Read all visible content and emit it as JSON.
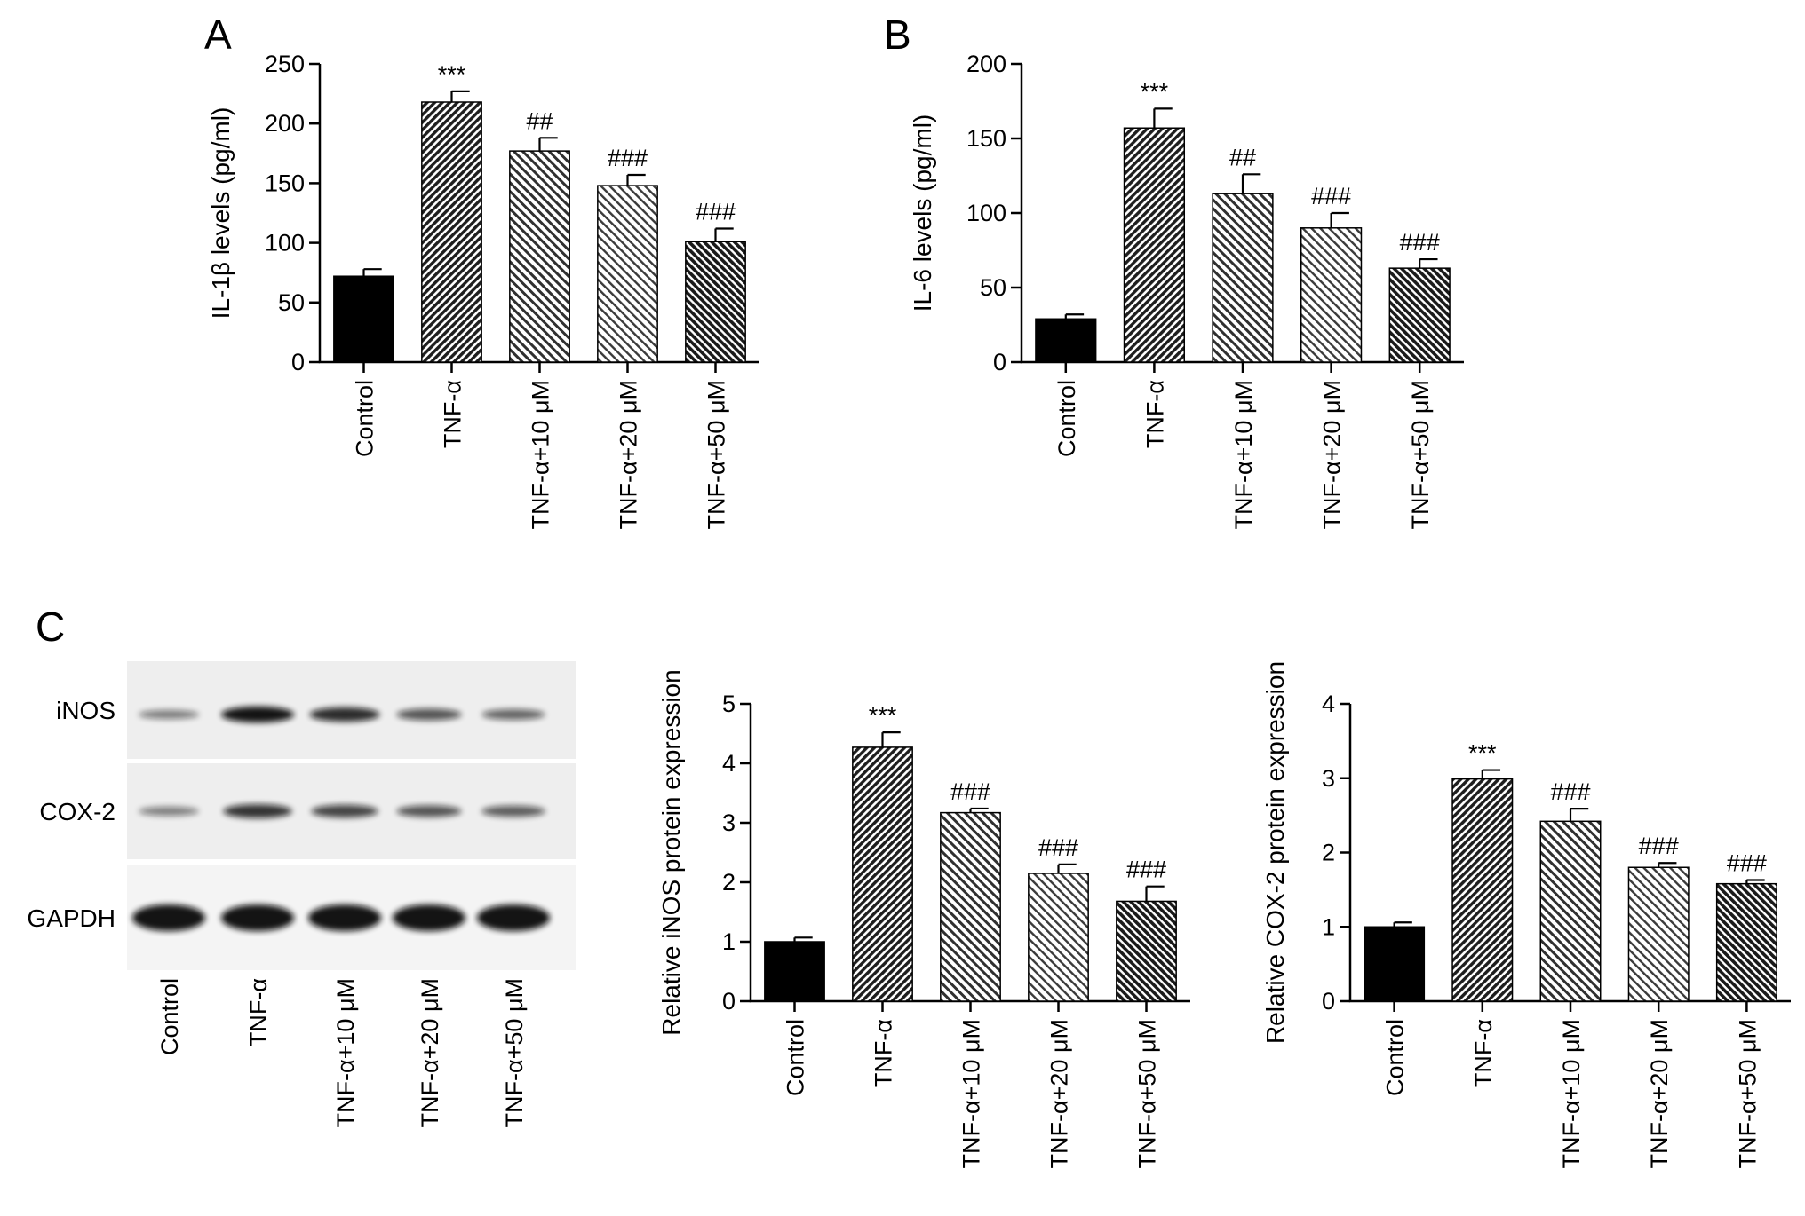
{
  "panels": [
    {
      "letter": "A"
    },
    {
      "letter": "B"
    },
    {
      "letter": "C"
    }
  ],
  "blot": {
    "rows": [
      {
        "label": "iNOS",
        "intensity": [
          0.35,
          1.0,
          0.85,
          0.6,
          0.5
        ]
      },
      {
        "label": "COX-2",
        "intensity": [
          0.35,
          0.8,
          0.7,
          0.6,
          0.55
        ]
      },
      {
        "label": "GAPDH",
        "intensity": [
          1.0,
          1.0,
          1.0,
          1.0,
          1.0
        ]
      }
    ],
    "lanes": [
      "Control",
      "TNF-α",
      "TNF-α+10 μM",
      "TNF-α+20 μM",
      "TNF-α+50 μM"
    ]
  },
  "chart_data": [
    {
      "type": "bar",
      "panel": "A",
      "categories": [
        "Control",
        "TNF-α",
        "TNF-α+10 μM",
        "TNF-α+20 μM",
        "TNF-α+50 μM"
      ],
      "values": [
        72,
        218,
        177,
        148,
        101
      ],
      "errors": [
        6,
        9,
        11,
        9,
        11
      ],
      "annotations": [
        "",
        "***",
        "##",
        "###",
        "###"
      ],
      "ylabel": "IL-1β levels (pg/ml)",
      "ylim": [
        0,
        250
      ],
      "yticks": [
        0,
        50,
        100,
        150,
        200,
        250
      ]
    },
    {
      "type": "bar",
      "panel": "B",
      "categories": [
        "Control",
        "TNF-α",
        "TNF-α+10 μM",
        "TNF-α+20 μM",
        "TNF-α+50 μM"
      ],
      "values": [
        29,
        157,
        113,
        90,
        63
      ],
      "errors": [
        3,
        13,
        13,
        10,
        6
      ],
      "annotations": [
        "",
        "***",
        "##",
        "###",
        "###"
      ],
      "ylabel": "IL-6 levels (pg/ml)",
      "ylim": [
        0,
        200
      ],
      "yticks": [
        0,
        50,
        100,
        150,
        200
      ]
    },
    {
      "type": "bar",
      "panel": "C",
      "categories": [
        "Control",
        "TNF-α",
        "TNF-α+10 μM",
        "TNF-α+20 μM",
        "TNF-α+50 μM"
      ],
      "values": [
        1.0,
        4.27,
        3.17,
        2.15,
        1.68
      ],
      "errors": [
        0.07,
        0.25,
        0.07,
        0.15,
        0.25
      ],
      "annotations": [
        "",
        "***",
        "###",
        "###",
        "###"
      ],
      "ylabel": "Relative iNOS protein expression",
      "ylim": [
        0,
        5
      ],
      "yticks": [
        0,
        1,
        2,
        3,
        4,
        5
      ]
    },
    {
      "type": "bar",
      "panel": "C",
      "categories": [
        "Control",
        "TNF-α",
        "TNF-α+10 μM",
        "TNF-α+20 μM",
        "TNF-α+50 μM"
      ],
      "values": [
        1.0,
        2.99,
        2.42,
        1.8,
        1.58
      ],
      "errors": [
        0.06,
        0.12,
        0.17,
        0.06,
        0.05
      ],
      "annotations": [
        "",
        "***",
        "###",
        "###",
        "###"
      ],
      "ylabel": "Relative COX-2 protein expression",
      "ylim": [
        0,
        4
      ],
      "yticks": [
        0,
        1,
        2,
        3,
        4
      ]
    }
  ]
}
